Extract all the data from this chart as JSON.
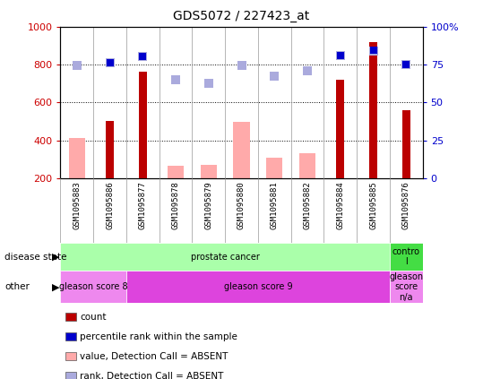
{
  "title": "GDS5072 / 227423_at",
  "samples": [
    "GSM1095883",
    "GSM1095886",
    "GSM1095877",
    "GSM1095878",
    "GSM1095879",
    "GSM1095880",
    "GSM1095881",
    "GSM1095882",
    "GSM1095884",
    "GSM1095885",
    "GSM1095876"
  ],
  "count_values": [
    null,
    500,
    760,
    null,
    null,
    null,
    null,
    null,
    720,
    920,
    560
  ],
  "count_color": "#bb0000",
  "value_absent": [
    410,
    null,
    null,
    265,
    270,
    495,
    310,
    330,
    null,
    null,
    null
  ],
  "value_absent_color": "#ffaaaa",
  "rank_absent": [
    795,
    810,
    840,
    720,
    700,
    795,
    740,
    765,
    845,
    870,
    800
  ],
  "rank_absent_color": "#aaaadd",
  "percentile_rank": [
    null,
    810,
    840,
    null,
    null,
    null,
    null,
    null,
    848,
    875,
    800
  ],
  "percentile_rank_color": "#0000cc",
  "ylim_left": [
    200,
    1000
  ],
  "ylim_right": [
    0,
    100
  ],
  "yticks_left": [
    200,
    400,
    600,
    800,
    1000
  ],
  "yticks_right": [
    0,
    25,
    50,
    75,
    100
  ],
  "grid_lines": [
    400,
    600,
    800
  ],
  "disease_state_groups": [
    {
      "label": "prostate cancer",
      "start": 0,
      "end": 9,
      "color": "#aaffaa"
    },
    {
      "label": "contro\nl",
      "start": 10,
      "end": 10,
      "color": "#44dd44"
    }
  ],
  "other_groups": [
    {
      "label": "gleason score 8",
      "start": 0,
      "end": 1,
      "color": "#ee88ee"
    },
    {
      "label": "gleason score 9",
      "start": 2,
      "end": 9,
      "color": "#dd44dd"
    },
    {
      "label": "gleason\nscore\nn/a",
      "start": 10,
      "end": 10,
      "color": "#ee88ee"
    }
  ],
  "legend_items": [
    {
      "label": "count",
      "color": "#bb0000"
    },
    {
      "label": "percentile rank within the sample",
      "color": "#0000cc"
    },
    {
      "label": "value, Detection Call = ABSENT",
      "color": "#ffaaaa"
    },
    {
      "label": "rank, Detection Call = ABSENT",
      "color": "#aaaadd"
    }
  ],
  "left_ylabel_color": "#cc0000",
  "right_ylabel_color": "#0000cc",
  "bar_width": 0.5,
  "thin_bar_width": 0.25,
  "marker_size": 7,
  "xticklabel_bg": "#cccccc",
  "fig_bg": "#ffffff"
}
